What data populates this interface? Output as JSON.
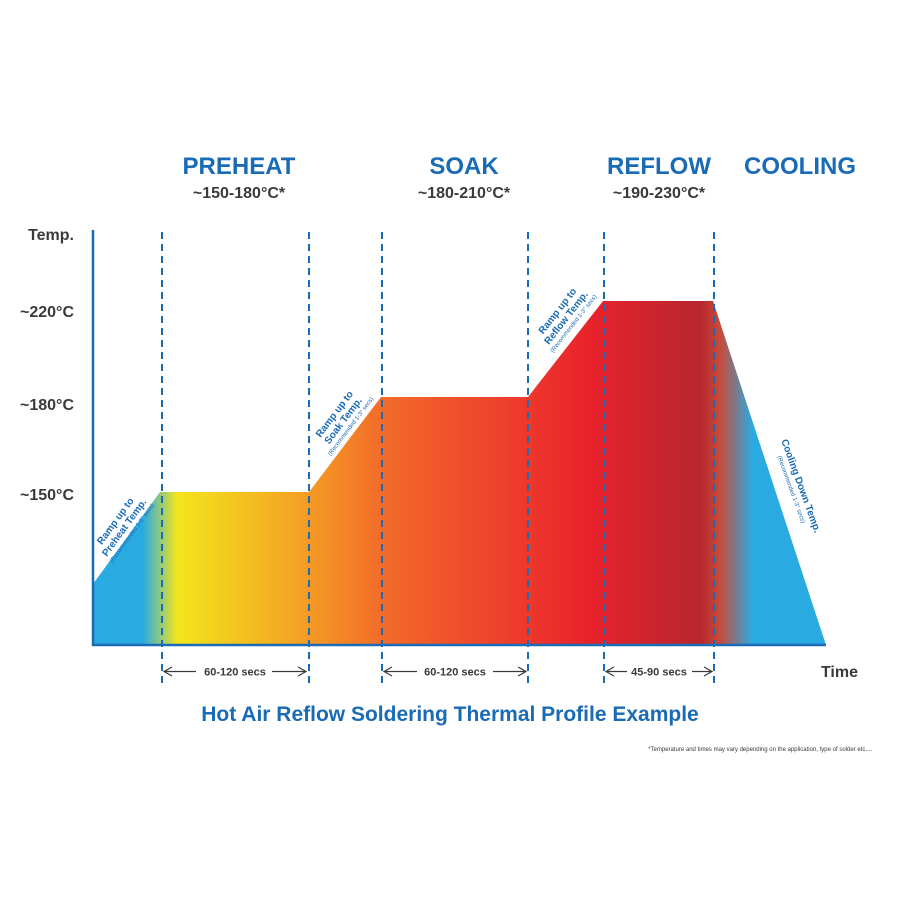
{
  "chart_data": {
    "type": "area",
    "title": "Hot Air Reflow Soldering Thermal Profile Example",
    "xlabel": "Time",
    "ylabel": "Temp.",
    "y_ticks": [
      "~150°C",
      "~180°C",
      "~220°C"
    ],
    "stages": [
      {
        "name": "PREHEAT",
        "range": "~150-180°C*",
        "duration": "60-120 secs"
      },
      {
        "name": "SOAK",
        "range": "~180-210°C*",
        "duration": "60-120 secs"
      },
      {
        "name": "REFLOW",
        "range": "~190-230°C*",
        "duration": "45-90 secs"
      },
      {
        "name": "COOLING",
        "range": "",
        "duration": ""
      }
    ],
    "ramps": [
      {
        "label": "Ramp up to Preheat Temp.",
        "note": "(Recommended 1-3° secs)"
      },
      {
        "label": "Ramp up to Soak Temp.",
        "note": "(Recommended 1-3° secs)"
      },
      {
        "label": "Ramp up to Reflow Temp.",
        "note": "(Recommended 1-3° secs)"
      },
      {
        "label": "Cooling Down Temp.",
        "note": "(Recommended 1-3° secs)"
      }
    ],
    "colors": {
      "accent": "#1a6bb5",
      "cool": "#29abe2",
      "preheat": "#f4e51c",
      "soak": "#f26a2a",
      "reflow": "#e8222b",
      "reflow_dark": "#b8262f"
    },
    "footnote": "*Temperature and times may vary depending on the application, type of solder etc...."
  }
}
